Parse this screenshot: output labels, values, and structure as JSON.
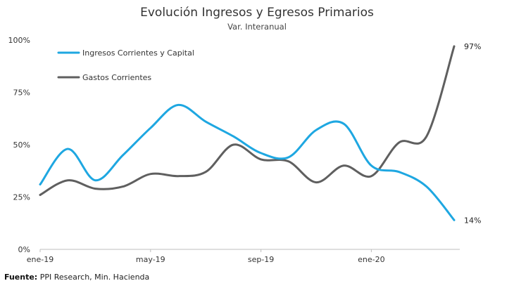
{
  "chart_data": {
    "type": "line",
    "title": "Evolución Ingresos y Egresos Primarios",
    "subtitle": "Var. Interanual",
    "xlabel": "",
    "ylabel": "",
    "ylim": [
      0,
      100
    ],
    "yticks": [
      "0%",
      "25%",
      "50%",
      "75%",
      "100%"
    ],
    "ytick_values": [
      0,
      25,
      50,
      75,
      100
    ],
    "x": [
      "ene-19",
      "feb-19",
      "mar-19",
      "abr-19",
      "may-19",
      "jun-19",
      "jul-19",
      "ago-19",
      "sep-19",
      "oct-19",
      "nov-19",
      "dic-19",
      "ene-20",
      "feb-20",
      "mar-20",
      "abr-20"
    ],
    "xtick_labels": [
      {
        "index": 0,
        "label": "ene-19"
      },
      {
        "index": 4,
        "label": "may-19"
      },
      {
        "index": 8,
        "label": "sep-19"
      },
      {
        "index": 12,
        "label": "ene-20"
      }
    ],
    "series": [
      {
        "name": "Ingresos Corrientes y Capital",
        "color": "#1ea7e1",
        "values": [
          31,
          48,
          33,
          45,
          58,
          69,
          61,
          54,
          46,
          44,
          57,
          60,
          40,
          37,
          30,
          14
        ]
      },
      {
        "name": "Gastos Corrientes",
        "color": "#5f5f5f",
        "values": [
          26,
          33,
          29,
          30,
          36,
          35,
          37,
          50,
          43,
          42,
          32,
          40,
          35,
          51,
          54,
          97
        ]
      }
    ],
    "end_labels": [
      "14%",
      "97%"
    ],
    "legend": "top-left",
    "grid": false
  },
  "source": {
    "label": "Fuente:",
    "text": "PPI Research, Min. Hacienda"
  }
}
